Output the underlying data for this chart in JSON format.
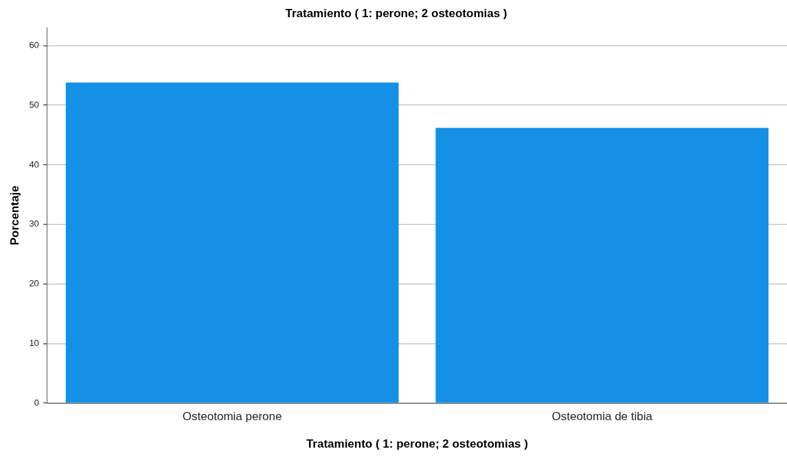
{
  "chart_data": {
    "type": "bar",
    "title": "Tratamiento ( 1: perone; 2 osteotomias )",
    "xlabel": "Tratamiento ( 1: perone; 2 osteotomias )",
    "ylabel": "Porcentaje",
    "categories": [
      "Osteotomia perone",
      "Osteotomia de tibia"
    ],
    "values": [
      53.8,
      46.2
    ],
    "color": "#1490e6",
    "ylim": [
      0,
      63
    ],
    "yticks": [
      0,
      10,
      20,
      30,
      40,
      50,
      60
    ],
    "grid": "y",
    "legend": false
  }
}
